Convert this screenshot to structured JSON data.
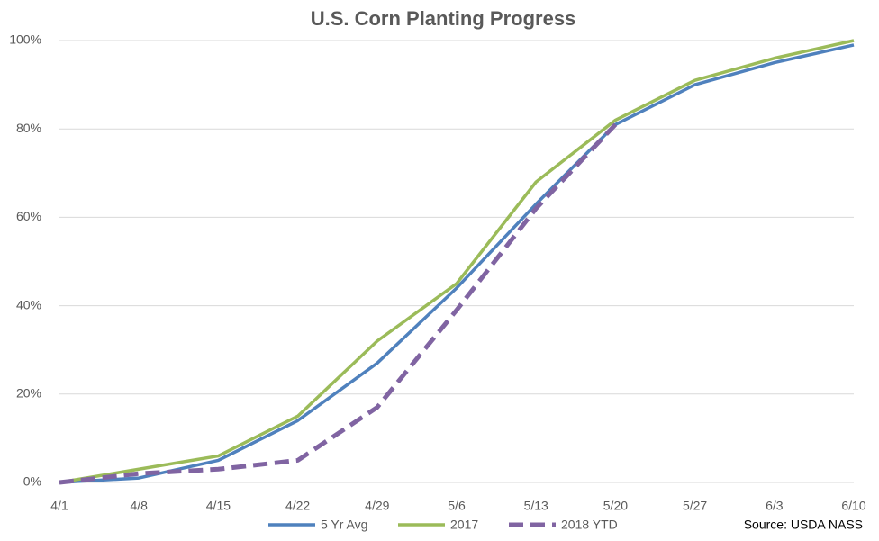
{
  "chart_data": {
    "type": "line",
    "title": "U.S. Corn Planting Progress",
    "categories": [
      "4/1",
      "4/8",
      "4/15",
      "4/22",
      "4/29",
      "5/6",
      "5/13",
      "5/20",
      "5/27",
      "6/3",
      "6/10"
    ],
    "series": [
      {
        "name": "5 Yr Avg",
        "color": "#4f81bd",
        "dashed": false,
        "values": [
          0,
          1,
          5,
          14,
          27,
          44,
          63,
          81,
          90,
          95,
          99
        ]
      },
      {
        "name": "2017",
        "color": "#9bbb59",
        "dashed": false,
        "values": [
          0,
          3,
          6,
          15,
          32,
          45,
          68,
          82,
          91,
          96,
          100
        ]
      },
      {
        "name": "2018 YTD",
        "color": "#8064a2",
        "dashed": true,
        "values": [
          0,
          2,
          3,
          5,
          17,
          39,
          62,
          81,
          null,
          null,
          null
        ]
      }
    ],
    "ylim": [
      0,
      100
    ],
    "yticks": [
      {
        "value": 0,
        "label": "0%"
      },
      {
        "value": 20,
        "label": "20%"
      },
      {
        "value": 40,
        "label": "40%"
      },
      {
        "value": 60,
        "label": "60%"
      },
      {
        "value": 80,
        "label": "80%"
      },
      {
        "value": 100,
        "label": "100%"
      }
    ],
    "grid": true,
    "legend": "bottom",
    "source": "Source: USDA NASS"
  }
}
